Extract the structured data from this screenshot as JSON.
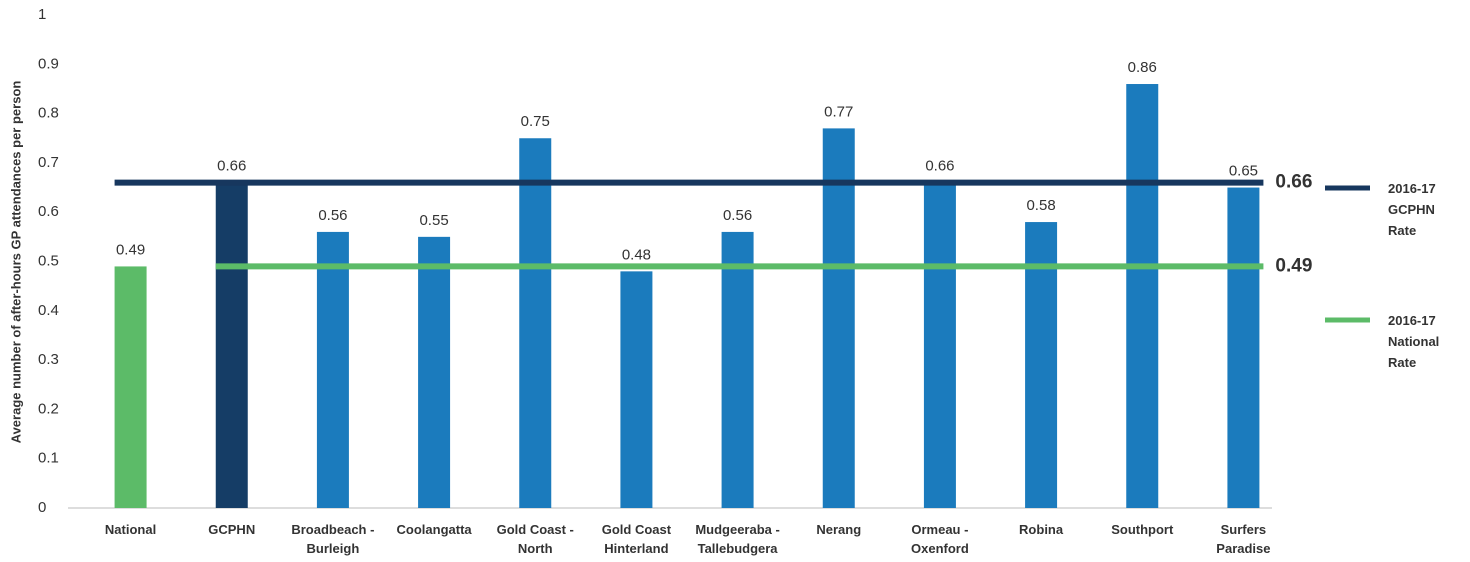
{
  "chart_data": {
    "type": "bar",
    "y_axis_label": "Average number of after-hours GP attendances per person",
    "categories": [
      "National",
      "GCPHN",
      "Broadbeach - Burleigh",
      "Coolangatta",
      "Gold Coast - North",
      "Gold Coast Hinterland",
      "Mudgeeraba - Tallebudgera",
      "Nerang",
      "Ormeau - Oxenford",
      "Robina",
      "Southport",
      "Surfers Paradise"
    ],
    "values": [
      0.49,
      0.66,
      0.56,
      0.55,
      0.75,
      0.48,
      0.56,
      0.77,
      0.66,
      0.58,
      0.86,
      0.65
    ],
    "colors": [
      "#5cbb68",
      "#153d66",
      "#1b7bbd",
      "#1b7bbd",
      "#1b7bbd",
      "#1b7bbd",
      "#1b7bbd",
      "#1b7bbd",
      "#1b7bbd",
      "#1b7bbd",
      "#1b7bbd",
      "#1b7bbd"
    ],
    "ylim": [
      0,
      1
    ],
    "yticks": [
      0,
      0.1,
      0.2,
      0.3,
      0.4,
      0.5,
      0.6,
      0.7,
      0.8,
      0.9,
      1
    ],
    "grid": false,
    "legend_position": "right",
    "reference_lines": [
      {
        "name": "2016-17 GCPHN Rate",
        "value": 0.66,
        "color": "#17375e"
      },
      {
        "name": "2016-17 National Rate",
        "value": 0.49,
        "color": "#5cbb68"
      }
    ]
  }
}
